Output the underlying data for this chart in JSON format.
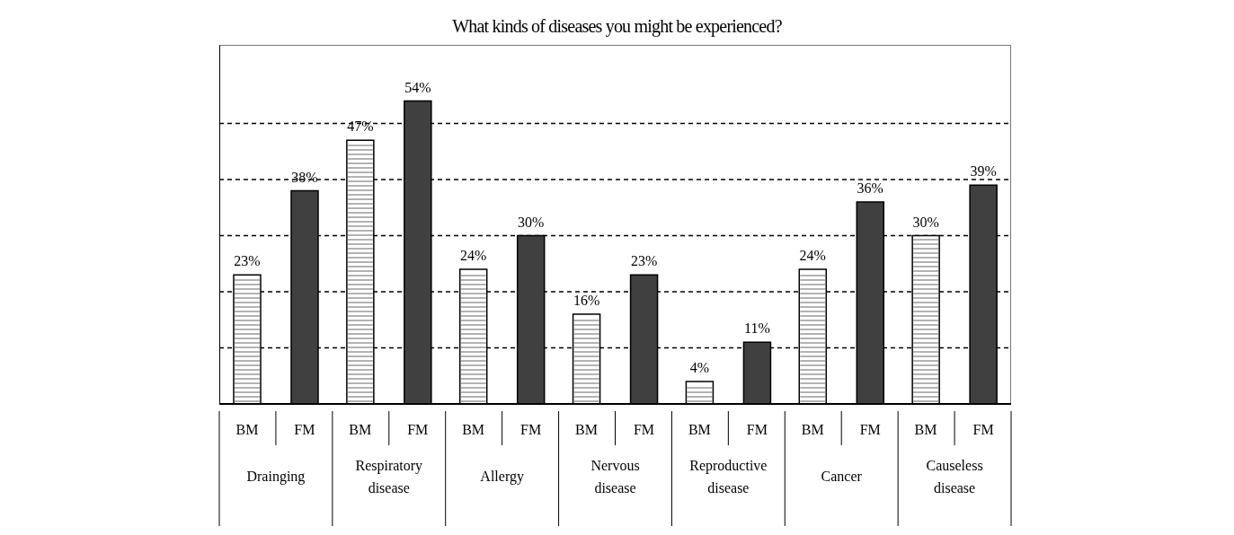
{
  "chart_data": {
    "type": "bar",
    "title": "What kinds of diseases you might be experienced?",
    "categories": [
      "Drainging",
      "Respiratory disease",
      "Allergy",
      "Nervous disease",
      "Reproductive disease",
      "Cancer",
      "Causeless disease"
    ],
    "series": [
      {
        "name": "BM",
        "color": "#ffffff",
        "values": [
          23,
          47,
          24,
          16,
          4,
          24,
          30
        ],
        "value_labels": [
          "23%",
          "47%",
          "24%",
          "16%",
          "4%",
          "24%",
          "30%"
        ]
      },
      {
        "name": "FM",
        "color": "#404040",
        "values": [
          38,
          54,
          30,
          23,
          11,
          36,
          39
        ],
        "value_labels": [
          "38%",
          "54%",
          "30%",
          "23%",
          "11%",
          "36%",
          "39%"
        ]
      }
    ],
    "ylim": [
      0,
      64
    ],
    "yticks": [
      {
        "value": 10,
        "label": null
      },
      {
        "value": 20,
        "label": null
      },
      {
        "value": 30,
        "label": null
      },
      {
        "value": 40,
        "label": null
      },
      {
        "value": 50,
        "label": null
      }
    ],
    "grid": "y",
    "tick_labels": "x"
  }
}
